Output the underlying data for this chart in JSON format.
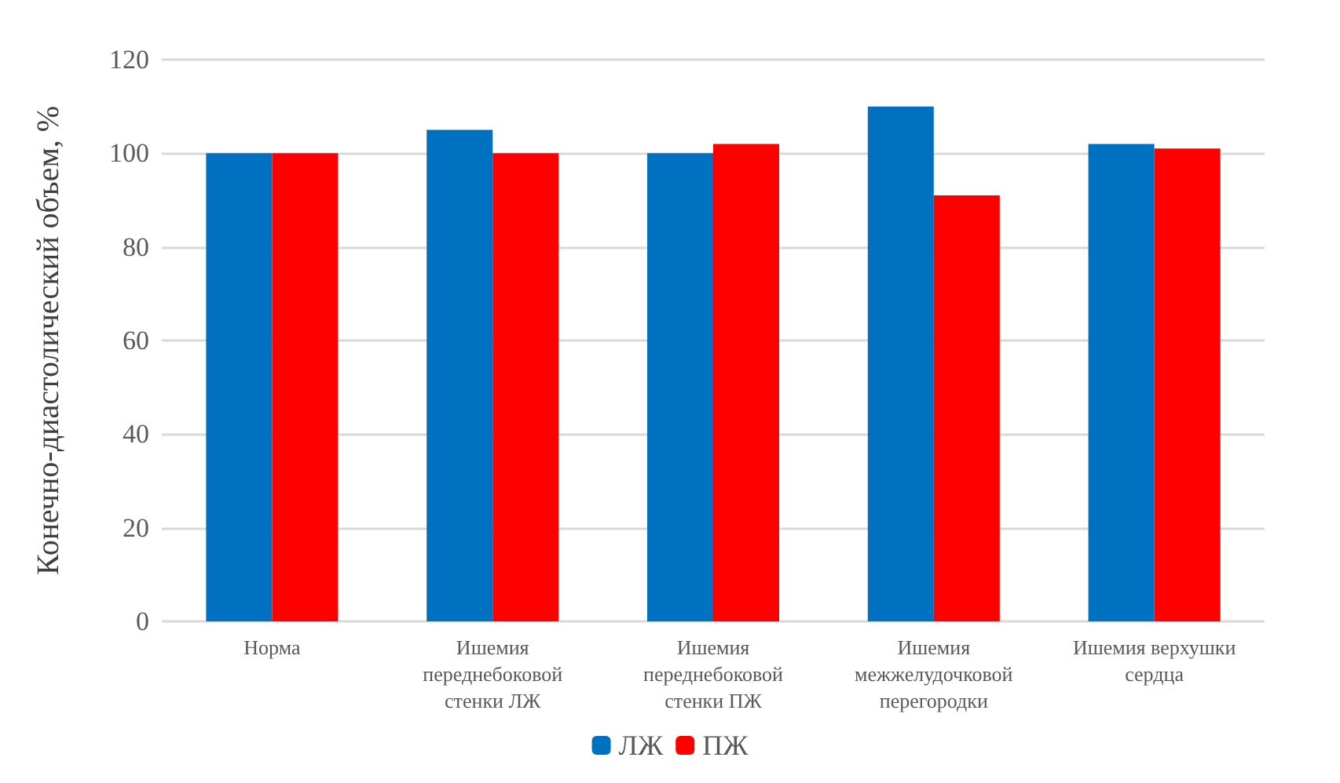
{
  "chart_data": {
    "type": "bar",
    "ylabel": "Конечно-диастолический объем, %",
    "categories": [
      "Норма",
      "Ишемия\nпереднебоковой\nстенки ЛЖ",
      "Ишемия\nпереднебоковой\nстенки ПЖ",
      "Ишемия\nмежжелудочковой\nперегородки",
      "Ишемия верхушки\nсердца"
    ],
    "series": [
      {
        "name": "ЛЖ",
        "color": "#0070c0",
        "values": [
          100,
          105,
          100,
          110,
          102
        ]
      },
      {
        "name": "ПЖ",
        "color": "#ff0000",
        "values": [
          100,
          100,
          102,
          91,
          101
        ]
      }
    ],
    "ylim": [
      0,
      120
    ],
    "yticks": [
      0,
      20,
      40,
      60,
      80,
      100,
      120
    ],
    "grid": "y",
    "legend": "bottom"
  }
}
